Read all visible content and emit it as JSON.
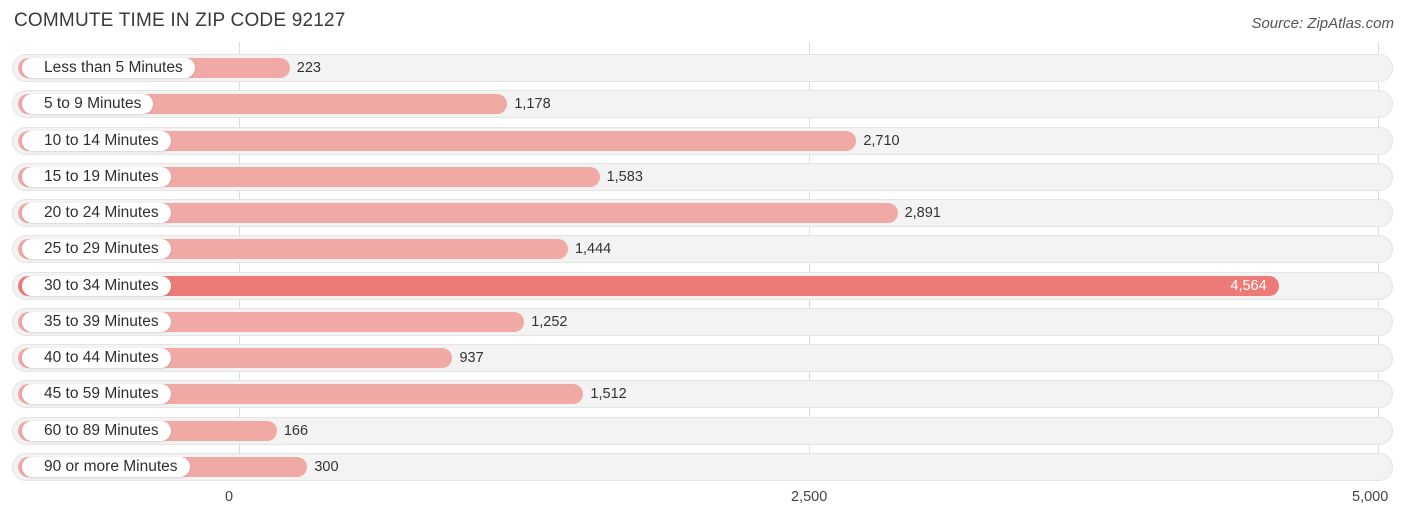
{
  "chart_data": {
    "type": "bar",
    "orientation": "horizontal",
    "title": "COMMUTE TIME IN ZIP CODE 92127",
    "source": "Source: ZipAtlas.com",
    "categories": [
      "Less than 5 Minutes",
      "5 to 9 Minutes",
      "10 to 14 Minutes",
      "15 to 19 Minutes",
      "20 to 24 Minutes",
      "25 to 29 Minutes",
      "30 to 34 Minutes",
      "35 to 39 Minutes",
      "40 to 44 Minutes",
      "45 to 59 Minutes",
      "60 to 89 Minutes",
      "90 or more Minutes"
    ],
    "values": [
      223,
      1178,
      2710,
      1583,
      2891,
      1444,
      4564,
      1252,
      937,
      1512,
      166,
      300
    ],
    "value_labels": [
      "223",
      "1,178",
      "2,710",
      "1,583",
      "2,891",
      "1,444",
      "4,564",
      "1,252",
      "937",
      "1,512",
      "166",
      "300"
    ],
    "xlim": [
      0,
      5000
    ],
    "x_ticks": [
      0,
      2500,
      5000
    ],
    "x_tick_labels": [
      "0",
      "2,500",
      "5,000"
    ],
    "highlight_index": 6,
    "colors": {
      "bar": "#f0a9a5",
      "bar_highlight": "#ec7a76",
      "row_bg": "#f3f3f3"
    },
    "grid": true
  }
}
